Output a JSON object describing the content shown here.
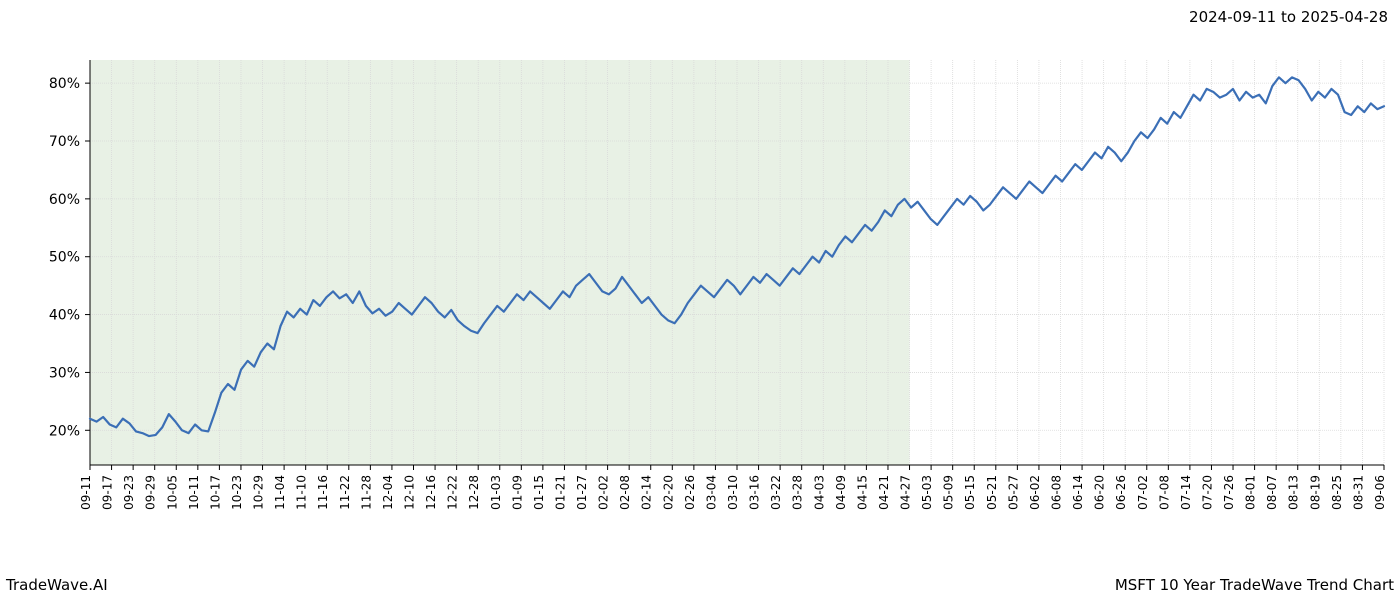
{
  "header": {
    "date_range": "2024-09-11 to 2025-04-28"
  },
  "footer": {
    "brand": "TradeWave.AI",
    "caption": "MSFT 10 Year TradeWave Trend Chart"
  },
  "chart": {
    "type": "line",
    "line_color": "#3b6fb6",
    "line_width": 2.2,
    "background_color": "#ffffff",
    "grid_color": "#d9d9d9",
    "grid_dash": "1,1",
    "highlight_fill": "#e0ecdc",
    "highlight_opacity": 0.75,
    "axis_color": "#000000",
    "ylabel_fontsize": 14,
    "xlabel_fontsize": 12,
    "ylim": [
      14,
      84
    ],
    "yticks": [
      20,
      30,
      40,
      50,
      60,
      70,
      80
    ],
    "ytick_format_suffix": "%",
    "highlight_x_start": 0,
    "highlight_x_end": 38,
    "xticks": [
      "09-11",
      "09-17",
      "09-23",
      "09-29",
      "10-05",
      "10-11",
      "10-17",
      "10-23",
      "10-29",
      "11-04",
      "11-10",
      "11-16",
      "11-22",
      "11-28",
      "12-04",
      "12-10",
      "12-16",
      "12-22",
      "12-28",
      "01-03",
      "01-09",
      "01-15",
      "01-21",
      "01-27",
      "02-02",
      "02-08",
      "02-14",
      "02-20",
      "02-26",
      "03-04",
      "03-10",
      "03-16",
      "03-22",
      "03-28",
      "04-03",
      "04-09",
      "04-15",
      "04-21",
      "04-27",
      "05-03",
      "05-09",
      "05-15",
      "05-21",
      "05-27",
      "06-02",
      "06-08",
      "06-14",
      "06-20",
      "06-26",
      "07-02",
      "07-08",
      "07-14",
      "07-20",
      "07-26",
      "08-01",
      "08-07",
      "08-13",
      "08-19",
      "08-25",
      "08-31",
      "09-06"
    ],
    "series": [
      22.0,
      21.5,
      22.3,
      21.0,
      20.5,
      22.0,
      21.2,
      19.8,
      19.5,
      19.0,
      19.2,
      20.5,
      22.8,
      21.5,
      20.0,
      19.5,
      21.0,
      20.0,
      19.8,
      23.0,
      26.5,
      28.0,
      27.0,
      30.5,
      32.0,
      31.0,
      33.5,
      35.0,
      34.0,
      38.0,
      40.5,
      39.5,
      41.0,
      40.0,
      42.5,
      41.5,
      43.0,
      44.0,
      42.8,
      43.5,
      42.0,
      44.0,
      41.5,
      40.2,
      41.0,
      39.8,
      40.5,
      42.0,
      41.0,
      40.0,
      41.5,
      43.0,
      42.0,
      40.5,
      39.5,
      40.8,
      39.0,
      38.0,
      37.2,
      36.8,
      38.5,
      40.0,
      41.5,
      40.5,
      42.0,
      43.5,
      42.5,
      44.0,
      43.0,
      42.0,
      41.0,
      42.5,
      44.0,
      43.0,
      45.0,
      46.0,
      47.0,
      45.5,
      44.0,
      43.5,
      44.5,
      46.5,
      45.0,
      43.5,
      42.0,
      43.0,
      41.5,
      40.0,
      39.0,
      38.5,
      40.0,
      42.0,
      43.5,
      45.0,
      44.0,
      43.0,
      44.5,
      46.0,
      45.0,
      43.5,
      45.0,
      46.5,
      45.5,
      47.0,
      46.0,
      45.0,
      46.5,
      48.0,
      47.0,
      48.5,
      50.0,
      49.0,
      51.0,
      50.0,
      52.0,
      53.5,
      52.5,
      54.0,
      55.5,
      54.5,
      56.0,
      58.0,
      57.0,
      59.0,
      60.0,
      58.5,
      59.5,
      58.0,
      56.5,
      55.5,
      57.0,
      58.5,
      60.0,
      59.0,
      60.5,
      59.5,
      58.0,
      59.0,
      60.5,
      62.0,
      61.0,
      60.0,
      61.5,
      63.0,
      62.0,
      61.0,
      62.5,
      64.0,
      63.0,
      64.5,
      66.0,
      65.0,
      66.5,
      68.0,
      67.0,
      69.0,
      68.0,
      66.5,
      68.0,
      70.0,
      71.5,
      70.5,
      72.0,
      74.0,
      73.0,
      75.0,
      74.0,
      76.0,
      78.0,
      77.0,
      79.0,
      78.5,
      77.5,
      78.0,
      79.0,
      77.0,
      78.5,
      77.5,
      78.0,
      76.5,
      79.5,
      81.0,
      80.0,
      81.0,
      80.5,
      79.0,
      77.0,
      78.5,
      77.5,
      79.0,
      78.0,
      75.0,
      74.5,
      76.0,
      75.0,
      76.5,
      75.5,
      76.0
    ]
  }
}
